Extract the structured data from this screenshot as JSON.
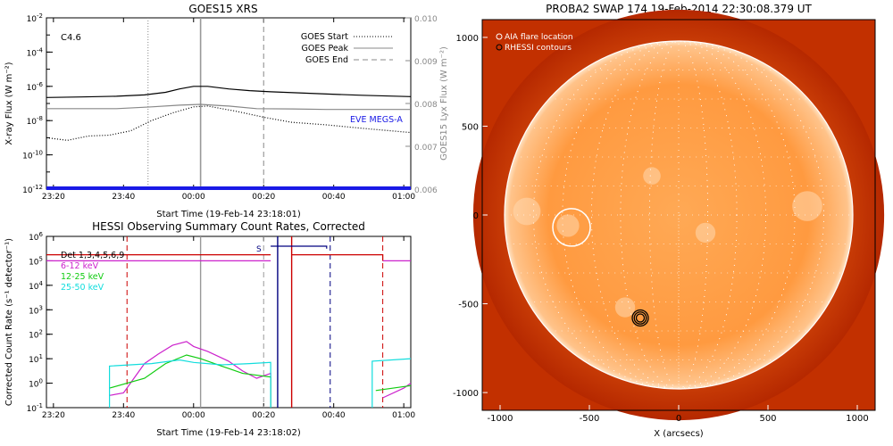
{
  "chart_data": [
    {
      "id": "goes",
      "type": "line",
      "title": "GOES15 XRS",
      "xlabel": "Start Time (19-Feb-14 23:18:01)",
      "ylabel": "X-ray Flux (W m⁻²)",
      "y2label": "GOES15 Lyx Flux (W m⁻²)",
      "x_unit": "minutes after 23:18",
      "xlim": [
        0,
        104
      ],
      "ylim_log10": [
        -12,
        -2
      ],
      "y2lim": [
        0.006,
        0.01
      ],
      "x_ticks": [
        {
          "x": 2,
          "label": "23:20"
        },
        {
          "x": 22,
          "label": "23:40"
        },
        {
          "x": 42,
          "label": "00:00"
        },
        {
          "x": 62,
          "label": "00:20"
        },
        {
          "x": 82,
          "label": "00:40"
        },
        {
          "x": 102,
          "label": "01:00"
        }
      ],
      "y_ticks": [
        {
          "exp": -2,
          "label": "10",
          "sup": "-2"
        },
        {
          "exp": -4,
          "label": "10",
          "sup": "-4"
        },
        {
          "exp": -6,
          "label": "10",
          "sup": "-6"
        },
        {
          "exp": -8,
          "label": "10",
          "sup": "-8"
        },
        {
          "exp": -10,
          "label": "10",
          "sup": "-10"
        },
        {
          "exp": -12,
          "label": "10",
          "sup": "-12"
        }
      ],
      "y2_ticks": [
        "0.010",
        "0.009",
        "0.008",
        "0.007",
        "0.006"
      ],
      "class_label": "C4.6",
      "legend": [
        "GOES Start",
        "GOES Peak",
        "GOES End"
      ],
      "annotation": "EVE MEGS-A",
      "markers": {
        "start": 29,
        "peak": 44,
        "end": 62
      },
      "series": [
        {
          "color": "#000000",
          "style": "solid",
          "points": [
            [
              0,
              -6.65
            ],
            [
              10,
              -6.62
            ],
            [
              20,
              -6.58
            ],
            [
              28,
              -6.5
            ],
            [
              34,
              -6.35
            ],
            [
              38,
              -6.15
            ],
            [
              42,
              -6.0
            ],
            [
              46,
              -6.0
            ],
            [
              52,
              -6.15
            ],
            [
              58,
              -6.25
            ],
            [
              64,
              -6.32
            ],
            [
              72,
              -6.38
            ],
            [
              80,
              -6.45
            ],
            [
              90,
              -6.52
            ],
            [
              104,
              -6.6
            ]
          ]
        },
        {
          "color": "#888888",
          "style": "solid",
          "points": [
            [
              0,
              -7.3
            ],
            [
              20,
              -7.3
            ],
            [
              30,
              -7.2
            ],
            [
              38,
              -7.1
            ],
            [
              44,
              -7.05
            ],
            [
              52,
              -7.15
            ],
            [
              60,
              -7.3
            ],
            [
              70,
              -7.32
            ],
            [
              80,
              -7.35
            ],
            [
              104,
              -7.35
            ]
          ]
        },
        {
          "color": "#000000",
          "style": "dotted",
          "points": [
            [
              0,
              -9.0
            ],
            [
              6,
              -9.15
            ],
            [
              12,
              -8.9
            ],
            [
              18,
              -8.85
            ],
            [
              24,
              -8.6
            ],
            [
              30,
              -8.0
            ],
            [
              36,
              -7.55
            ],
            [
              42,
              -7.2
            ],
            [
              46,
              -7.15
            ],
            [
              54,
              -7.45
            ],
            [
              62,
              -7.8
            ],
            [
              70,
              -8.1
            ],
            [
              80,
              -8.25
            ],
            [
              90,
              -8.45
            ],
            [
              104,
              -8.7
            ]
          ]
        },
        {
          "color": "#1a1ae6",
          "style": "solid",
          "width": 4,
          "points": [
            [
              0,
              -11.95
            ],
            [
              104,
              -11.95
            ]
          ]
        }
      ]
    },
    {
      "id": "hessi",
      "type": "line",
      "title": "HESSI Observing Summary Count Rates, Corrected",
      "xlabel": "Start Time (19-Feb-14 23:18:02)",
      "ylabel": "Corrected Count Rate (s⁻¹ detector⁻¹)",
      "x_unit": "minutes after 23:18",
      "xlim": [
        0,
        104
      ],
      "ylim_log10": [
        -1,
        6
      ],
      "x_ticks": [
        {
          "x": 2,
          "label": "23:20"
        },
        {
          "x": 22,
          "label": "23:40"
        },
        {
          "x": 42,
          "label": "00:00"
        },
        {
          "x": 62,
          "label": "00:20"
        },
        {
          "x": 82,
          "label": "00:40"
        },
        {
          "x": 102,
          "label": "01:00"
        }
      ],
      "y_ticks": [
        {
          "exp": 6,
          "label": "10",
          "sup": "6"
        },
        {
          "exp": 5,
          "label": "10",
          "sup": "5"
        },
        {
          "exp": 4,
          "label": "10",
          "sup": "4"
        },
        {
          "exp": 3,
          "label": "10",
          "sup": "3"
        },
        {
          "exp": 2,
          "label": "10",
          "sup": "2"
        },
        {
          "exp": 1,
          "label": "10",
          "sup": "1"
        },
        {
          "exp": 0,
          "label": "10",
          "sup": "0"
        },
        {
          "exp": -1,
          "label": "10",
          "sup": "-1"
        }
      ],
      "legend": [
        {
          "name": "Det 1,3,4,5,6,9",
          "color": "#000000"
        },
        {
          "name": "6-12 keV",
          "color": "#cc22cc"
        },
        {
          "name": "12-25 keV",
          "color": "#11cc11"
        },
        {
          "name": "25-50 keV",
          "color": "#11dddd"
        }
      ],
      "state_label": "S",
      "dashed_markers": [
        {
          "x": 23,
          "color": "#cc0000"
        },
        {
          "x": 62,
          "color": "#999999"
        },
        {
          "x": 81,
          "color": "#000080"
        },
        {
          "x": 96,
          "color": "#cc0000"
        }
      ],
      "solid_markers": [
        {
          "x": 44,
          "color": "#999999"
        },
        {
          "x": 66,
          "color": "#000080"
        },
        {
          "x": 70,
          "color": "#cc0000"
        }
      ],
      "series": [
        {
          "color": "#cc22cc",
          "points": [
            [
              0,
              5.0
            ],
            [
              64,
              5.0
            ]
          ]
        },
        {
          "color": "#cc22cc",
          "points": [
            [
              96,
              5.0
            ],
            [
              104,
              5.0
            ]
          ]
        },
        {
          "color": "#cc0000",
          "points": [
            [
              0,
              5.25
            ],
            [
              64,
              5.25
            ]
          ]
        },
        {
          "color": "#cc0000",
          "points": [
            [
              70,
              5.25
            ],
            [
              96,
              5.25
            ],
            [
              96,
              5.0
            ]
          ]
        },
        {
          "color": "#000080",
          "points": [
            [
              64,
              5.6
            ],
            [
              80,
              5.6
            ],
            [
              80,
              5.5
            ]
          ]
        },
        {
          "color": "#cc22cc",
          "points": [
            [
              18,
              -0.5
            ],
            [
              22,
              -0.4
            ],
            [
              28,
              0.8
            ],
            [
              32,
              1.2
            ],
            [
              36,
              1.55
            ],
            [
              40,
              1.7
            ],
            [
              42,
              1.5
            ],
            [
              46,
              1.3
            ],
            [
              52,
              0.9
            ],
            [
              56,
              0.5
            ],
            [
              60,
              0.2
            ],
            [
              64,
              0.4
            ],
            [
              64,
              -1.0
            ]
          ]
        },
        {
          "color": "#cc22cc",
          "points": [
            [
              96,
              -0.6
            ],
            [
              102,
              -0.2
            ],
            [
              104,
              0.0
            ]
          ]
        },
        {
          "color": "#11cc11",
          "points": [
            [
              18,
              -0.2
            ],
            [
              28,
              0.2
            ],
            [
              34,
              0.8
            ],
            [
              40,
              1.15
            ],
            [
              44,
              1.0
            ],
            [
              50,
              0.7
            ],
            [
              56,
              0.4
            ],
            [
              64,
              0.25
            ],
            [
              64,
              -1.0
            ]
          ]
        },
        {
          "color": "#11cc11",
          "points": [
            [
              94,
              -0.3
            ],
            [
              104,
              -0.1
            ]
          ]
        },
        {
          "color": "#11dddd",
          "points": [
            [
              18,
              -1.0
            ],
            [
              18,
              0.7
            ],
            [
              30,
              0.8
            ],
            [
              38,
              0.95
            ],
            [
              42,
              0.85
            ],
            [
              50,
              0.75
            ],
            [
              58,
              0.8
            ],
            [
              64,
              0.85
            ],
            [
              64,
              -1.0
            ]
          ]
        },
        {
          "color": "#11dddd",
          "points": [
            [
              93,
              -1.0
            ],
            [
              93,
              0.9
            ],
            [
              104,
              1.0
            ]
          ]
        }
      ]
    }
  ],
  "image_panel": {
    "title": "PROBA2 SWAP 174 19-Feb-2014 22:30:08.379 UT",
    "xlabel": "X (arcsecs)",
    "xlim": [
      -1100,
      1100
    ],
    "ylim": [
      -1100,
      1100
    ],
    "x_ticks": [
      -1000,
      -500,
      0,
      500,
      1000
    ],
    "y_ticks": [
      1000,
      500,
      0,
      -500,
      -1000
    ],
    "legend": [
      "AIA flare location",
      "RHESSI contours"
    ],
    "flare_location": {
      "x": -600,
      "y": -70,
      "r_arcsec": 100
    },
    "rhessi_contour": {
      "x": -215,
      "y": -580,
      "r_arcsec": 45
    },
    "solar_radius_arcsec": 975,
    "colors": {
      "background": "#c23000",
      "disk": "#ff9a40",
      "grid": "#ffffff"
    }
  }
}
